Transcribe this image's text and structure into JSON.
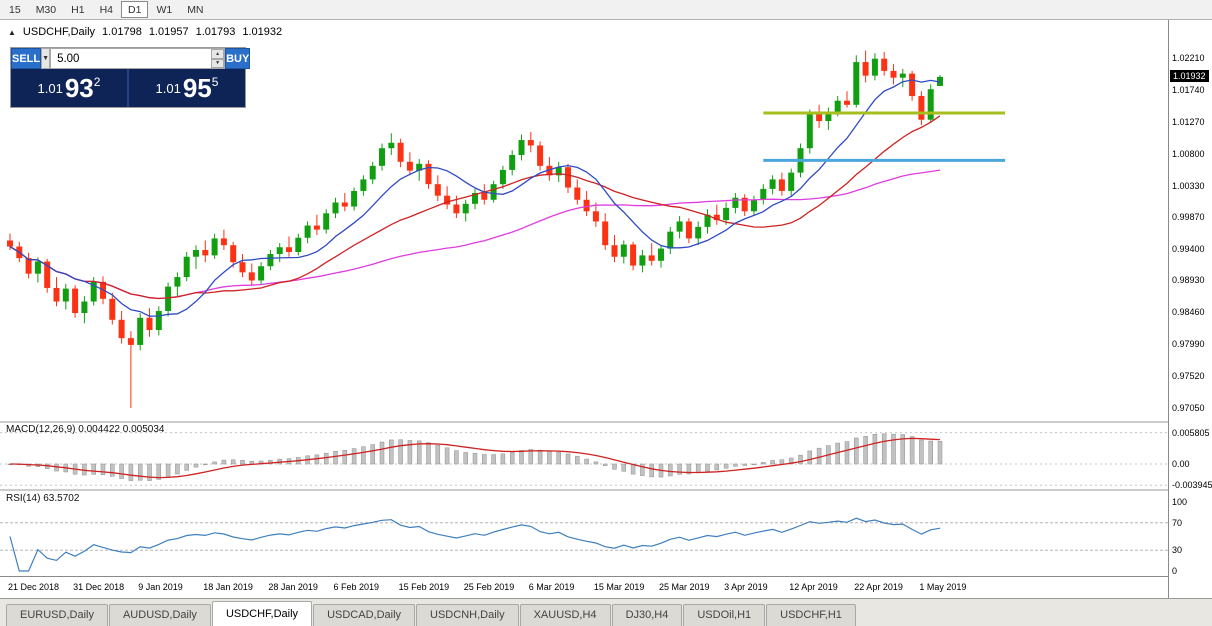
{
  "icons": {
    "chart_icon": "▲",
    "dropdown_arrow": "▼",
    "spin_up": "▲",
    "spin_down": "▼"
  },
  "colors": {
    "bull": "#119f11",
    "bear": "#fb3214",
    "ma_fast": "#2f4bc4",
    "ma_mid": "#cf2222",
    "ma_slow": "#de3cde",
    "macd_hist": "#c2c2c2",
    "macd_hist_stroke": "#8f8f8f",
    "macd_signal": "#cf2222",
    "rsi_line": "#3f7fbe",
    "badge_bg": "#000000",
    "panel_button": "#2a6fc9",
    "panel_dark": "#0e2356",
    "hline_olive": "#a6be1e",
    "hline_blue": "#4ba6dc"
  },
  "toolbar": {
    "timeframes": [
      {
        "label": "15",
        "active": false
      },
      {
        "label": "M30",
        "active": false
      },
      {
        "label": "H1",
        "active": false
      },
      {
        "label": "H4",
        "active": false
      },
      {
        "label": "D1",
        "active": true
      },
      {
        "label": "W1",
        "active": false
      },
      {
        "label": "MN",
        "active": false
      }
    ]
  },
  "chart": {
    "title": {
      "symbol": "USDCHF,Daily",
      "open": "1.01798",
      "high": "1.01957",
      "low": "1.01793",
      "close": "1.01932"
    },
    "panel": {
      "sell_label": "SELL",
      "buy_label": "BUY",
      "volume": "5.00",
      "sell_price": {
        "base": "1.01",
        "pips": "93",
        "frac": "2"
      },
      "buy_price": {
        "base": "1.01",
        "pips": "95",
        "frac": "5"
      }
    }
  },
  "chart_data": {
    "type": "candlestick",
    "symbol": "USDCHF",
    "timeframe": "Daily",
    "current_price": "1.01932",
    "ohlc_current": {
      "open": 1.01798,
      "high": 1.01957,
      "low": 1.01793,
      "close": 1.01932
    },
    "y_axis": {
      "labels": [
        "1.02210",
        "1.01740",
        "1.01270",
        "1.00800",
        "1.00330",
        "0.99870",
        "0.99400",
        "0.98930",
        "0.98460",
        "0.97990",
        "0.97520",
        "0.97050"
      ],
      "min": 0.9705,
      "max": 1.0221
    },
    "x_labels": [
      {
        "i": 0,
        "t": "21 Dec 2018"
      },
      {
        "i": 7,
        "t": "31 Dec 2018"
      },
      {
        "i": 14,
        "t": "9 Jan 2019"
      },
      {
        "i": 21,
        "t": "18 Jan 2019"
      },
      {
        "i": 28,
        "t": "28 Jan 2019"
      },
      {
        "i": 35,
        "t": "6 Feb 2019"
      },
      {
        "i": 42,
        "t": "15 Feb 2019"
      },
      {
        "i": 49,
        "t": "25 Feb 2019"
      },
      {
        "i": 56,
        "t": "6 Mar 2019"
      },
      {
        "i": 63,
        "t": "15 Mar 2019"
      },
      {
        "i": 70,
        "t": "25 Mar 2019"
      },
      {
        "i": 77,
        "t": "3 Apr 2019"
      },
      {
        "i": 84,
        "t": "12 Apr 2019"
      },
      {
        "i": 91,
        "t": "22 Apr 2019"
      },
      {
        "i": 98,
        "t": "1 May 2019"
      }
    ],
    "candles": [
      [
        0.9952,
        0.9962,
        0.9938,
        0.9943
      ],
      [
        0.9943,
        0.995,
        0.992,
        0.9926
      ],
      [
        0.9926,
        0.9934,
        0.9896,
        0.9903
      ],
      [
        0.9903,
        0.9927,
        0.989,
        0.9921
      ],
      [
        0.9921,
        0.9925,
        0.9875,
        0.9882
      ],
      [
        0.9882,
        0.9898,
        0.9855,
        0.9862
      ],
      [
        0.9862,
        0.9888,
        0.985,
        0.9881
      ],
      [
        0.9881,
        0.9886,
        0.9838,
        0.9845
      ],
      [
        0.9845,
        0.987,
        0.983,
        0.9862
      ],
      [
        0.9862,
        0.9898,
        0.9856,
        0.9891
      ],
      [
        0.9891,
        0.9899,
        0.9858,
        0.9866
      ],
      [
        0.9866,
        0.9875,
        0.9828,
        0.9835
      ],
      [
        0.9835,
        0.9848,
        0.98,
        0.9808
      ],
      [
        0.9808,
        0.9818,
        0.9705,
        0.9798
      ],
      [
        0.9798,
        0.9845,
        0.979,
        0.9838
      ],
      [
        0.9838,
        0.9852,
        0.981,
        0.982
      ],
      [
        0.982,
        0.9855,
        0.9812,
        0.9848
      ],
      [
        0.9848,
        0.989,
        0.984,
        0.9884
      ],
      [
        0.9884,
        0.9905,
        0.987,
        0.9898
      ],
      [
        0.9898,
        0.9935,
        0.9892,
        0.9928
      ],
      [
        0.9928,
        0.9945,
        0.991,
        0.9938
      ],
      [
        0.9938,
        0.9952,
        0.992,
        0.993
      ],
      [
        0.993,
        0.9962,
        0.9925,
        0.9955
      ],
      [
        0.9955,
        0.9968,
        0.9938,
        0.9945
      ],
      [
        0.9945,
        0.995,
        0.9912,
        0.992
      ],
      [
        0.992,
        0.9932,
        0.9898,
        0.9905
      ],
      [
        0.9905,
        0.9918,
        0.9885,
        0.9893
      ],
      [
        0.9893,
        0.992,
        0.9888,
        0.9914
      ],
      [
        0.9914,
        0.9938,
        0.9908,
        0.9932
      ],
      [
        0.9932,
        0.9948,
        0.992,
        0.9942
      ],
      [
        0.9942,
        0.9958,
        0.9928,
        0.9935
      ],
      [
        0.9935,
        0.9962,
        0.993,
        0.9956
      ],
      [
        0.9956,
        0.998,
        0.9948,
        0.9974
      ],
      [
        0.9974,
        0.999,
        0.996,
        0.9968
      ],
      [
        0.9968,
        0.9998,
        0.9962,
        0.9992
      ],
      [
        0.9992,
        1.0015,
        0.9985,
        1.0008
      ],
      [
        1.0008,
        1.0022,
        0.9995,
        1.0002
      ],
      [
        1.0002,
        1.003,
        0.9996,
        1.0025
      ],
      [
        1.0025,
        1.0048,
        1.0018,
        1.0042
      ],
      [
        1.0042,
        1.0068,
        1.0035,
        1.0062
      ],
      [
        1.0062,
        1.0095,
        1.0055,
        1.0088
      ],
      [
        1.0088,
        1.011,
        1.0078,
        1.0096
      ],
      [
        1.0096,
        1.0102,
        1.006,
        1.0068
      ],
      [
        1.0068,
        1.0082,
        1.0048,
        1.0055
      ],
      [
        1.0055,
        1.0072,
        1.004,
        1.0065
      ],
      [
        1.0065,
        1.007,
        1.0028,
        1.0035
      ],
      [
        1.0035,
        1.0048,
        1.001,
        1.0018
      ],
      [
        1.0018,
        1.0032,
        0.9998,
        1.0005
      ],
      [
        1.0005,
        1.0018,
        0.9985,
        0.9992
      ],
      [
        0.9992,
        1.0012,
        0.998,
        1.0006
      ],
      [
        1.0006,
        1.0028,
        0.9998,
        1.0022
      ],
      [
        1.0022,
        1.0035,
        1.0005,
        1.0012
      ],
      [
        1.0012,
        1.004,
        1.0008,
        1.0035
      ],
      [
        1.0035,
        1.0062,
        1.0028,
        1.0056
      ],
      [
        1.0056,
        1.0085,
        1.0048,
        1.0078
      ],
      [
        1.0078,
        1.0108,
        1.007,
        1.01
      ],
      [
        1.01,
        1.0112,
        1.0082,
        1.0092
      ],
      [
        1.0092,
        1.0098,
        1.0055,
        1.0062
      ],
      [
        1.0062,
        1.0075,
        1.004,
        1.0048
      ],
      [
        1.0048,
        1.0068,
        1.0038,
        1.006
      ],
      [
        1.006,
        1.0065,
        1.0022,
        1.003
      ],
      [
        1.003,
        1.0042,
        1.0005,
        1.0012
      ],
      [
        1.0012,
        1.0025,
        0.9988,
        0.9995
      ],
      [
        0.9995,
        1.0008,
        0.9972,
        0.998
      ],
      [
        0.998,
        0.9992,
        0.9938,
        0.9945
      ],
      [
        0.9945,
        0.996,
        0.992,
        0.9928
      ],
      [
        0.9928,
        0.9952,
        0.9918,
        0.9946
      ],
      [
        0.9946,
        0.995,
        0.9908,
        0.9915
      ],
      [
        0.9915,
        0.9938,
        0.9905,
        0.993
      ],
      [
        0.993,
        0.9948,
        0.9915,
        0.9922
      ],
      [
        0.9922,
        0.9945,
        0.9912,
        0.994
      ],
      [
        0.994,
        0.9972,
        0.9932,
        0.9965
      ],
      [
        0.9965,
        0.9988,
        0.9955,
        0.998
      ],
      [
        0.998,
        0.9985,
        0.9948,
        0.9955
      ],
      [
        0.9955,
        0.998,
        0.9945,
        0.9972
      ],
      [
        0.9972,
        0.9998,
        0.9962,
        0.999
      ],
      [
        0.999,
        1.0005,
        0.9975,
        0.9982
      ],
      [
        0.9982,
        1.0008,
        0.9975,
        1.0
      ],
      [
        1.0,
        1.0022,
        0.9992,
        1.0015
      ],
      [
        1.0015,
        1.002,
        0.9988,
        0.9995
      ],
      [
        0.9995,
        1.0018,
        0.9988,
        1.0012
      ],
      [
        1.0012,
        1.0035,
        1.0005,
        1.0028
      ],
      [
        1.0028,
        1.0048,
        1.002,
        1.0042
      ],
      [
        1.0042,
        1.0052,
        1.0018,
        1.0025
      ],
      [
        1.0025,
        1.0058,
        1.0018,
        1.0052
      ],
      [
        1.0052,
        1.0095,
        1.0045,
        1.0088
      ],
      [
        1.0088,
        1.0145,
        1.008,
        1.0138
      ],
      [
        1.0138,
        1.0152,
        1.0118,
        1.0128
      ],
      [
        1.0128,
        1.0148,
        1.0115,
        1.0142
      ],
      [
        1.0142,
        1.0165,
        1.0135,
        1.0158
      ],
      [
        1.0158,
        1.0172,
        1.0148,
        1.0152
      ],
      [
        1.0152,
        1.0225,
        1.0148,
        1.0215
      ],
      [
        1.0215,
        1.0232,
        1.0185,
        1.0195
      ],
      [
        1.0195,
        1.0228,
        1.0188,
        1.022
      ],
      [
        1.022,
        1.023,
        1.0195,
        1.0202
      ],
      [
        1.0202,
        1.0212,
        1.0182,
        1.0192
      ],
      [
        1.0192,
        1.0205,
        1.0178,
        1.0198
      ],
      [
        1.0198,
        1.0202,
        1.0158,
        1.0165
      ],
      [
        1.0165,
        1.0172,
        1.0122,
        1.013
      ],
      [
        1.013,
        1.0182,
        1.0125,
        1.0175
      ],
      [
        1.01798,
        1.01957,
        1.01793,
        1.01932
      ]
    ],
    "hlines": [
      {
        "price": 1.014,
        "color_key": "hline_olive",
        "from_index": 81,
        "to_index": 107
      },
      {
        "price": 1.007,
        "color_key": "hline_blue",
        "from_index": 81,
        "to_index": 107
      }
    ],
    "ma_periods": {
      "fast": 9,
      "mid": 21,
      "slow": 45
    },
    "indicators": {
      "macd": {
        "label": "MACD(12,26,9)",
        "values": "0.004422 0.005034",
        "scale_labels": [
          "0.005805",
          "0.00",
          "-0.003945"
        ]
      },
      "rsi": {
        "label": "RSI(14)",
        "value": "63.5702",
        "levels": [
          100,
          70,
          30,
          0
        ],
        "dashed_levels": [
          70,
          30
        ]
      }
    }
  },
  "tabs": [
    {
      "label": "EURUSD,Daily",
      "active": false
    },
    {
      "label": "AUDUSD,Daily",
      "active": false
    },
    {
      "label": "USDCHF,Daily",
      "active": true
    },
    {
      "label": "USDCAD,Daily",
      "active": false
    },
    {
      "label": "USDCNH,Daily",
      "active": false
    },
    {
      "label": "XAUUSD,H4",
      "active": false
    },
    {
      "label": "DJ30,H4",
      "active": false
    },
    {
      "label": "USDOil,H1",
      "active": false
    },
    {
      "label": "USDCHF,H1",
      "active": false
    }
  ]
}
